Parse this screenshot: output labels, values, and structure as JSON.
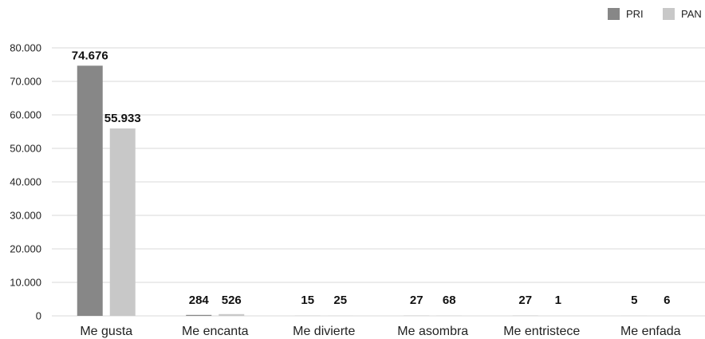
{
  "chart_data": {
    "type": "bar",
    "categories": [
      "Me gusta",
      "Me encanta",
      "Me divierte",
      "Me asombra",
      "Me entristece",
      "Me enfada"
    ],
    "series": [
      {
        "name": "PRI",
        "values": [
          74676,
          284,
          15,
          27,
          27,
          5
        ],
        "labels": [
          "74.676",
          "284",
          "15",
          "27",
          "27",
          "5"
        ],
        "color": "#878787"
      },
      {
        "name": "PAN",
        "values": [
          55933,
          526,
          25,
          68,
          1,
          6
        ],
        "labels": [
          "55.933",
          "526",
          "25",
          "68",
          "1",
          "6"
        ],
        "color": "#c8c8c8"
      }
    ],
    "yticks": [
      0,
      10000,
      20000,
      30000,
      40000,
      50000,
      60000,
      70000,
      80000
    ],
    "ytick_labels": [
      "0",
      "10.000",
      "20.000",
      "30.000",
      "40.000",
      "50.000",
      "60.000",
      "70.000",
      "80.000"
    ],
    "ylim": [
      0,
      80000
    ],
    "grid": true,
    "legend_position": "top-right",
    "title": "",
    "xlabel": "",
    "ylabel": ""
  }
}
